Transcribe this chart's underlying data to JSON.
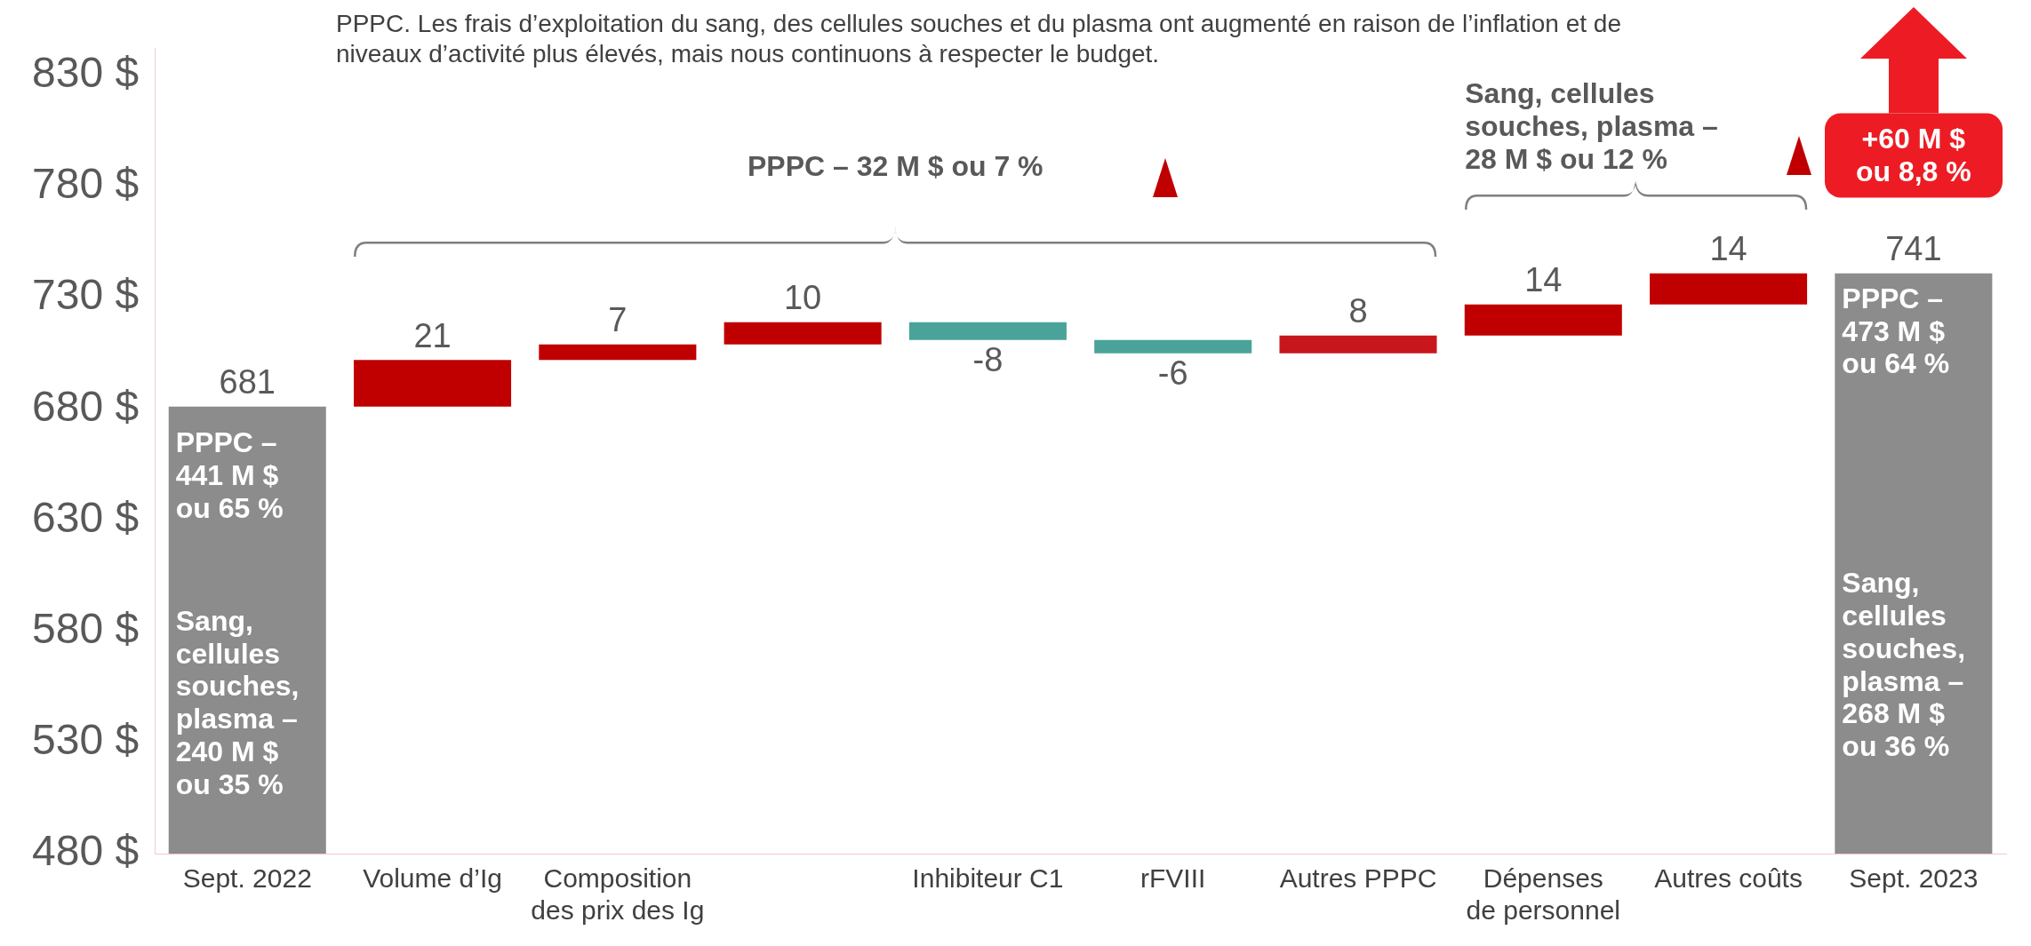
{
  "chart_data": {
    "type": "bar",
    "subtitle": "PPPC. Les frais d’exploitation du sang, des cellules souches et du plasma ont augmenté en raison de l’inflation et de niveaux d’activité plus élevés, mais nous continuons à respecter le budget.",
    "categories": [
      "Sept. 2022",
      "Volume d’Ig",
      "Composition des prix des Ig",
      null,
      "Inhibiteur C1",
      "rFVIII",
      "Autres PPPC",
      "Dépenses de personnel",
      "Autres coûts",
      "Sept. 2023"
    ],
    "values": [
      681,
      21,
      7,
      10,
      -8,
      -6,
      8,
      14,
      14,
      741
    ],
    "base": [
      null,
      681,
      702,
      709,
      719,
      711,
      705,
      713,
      727,
      null
    ],
    "colors": [
      "#8c8c8c",
      "#c00000",
      "#c00000",
      "#c00000",
      "#4aa39a",
      "#4aa39a",
      "#c8161d",
      "#c00000",
      "#c00000",
      "#8c8c8c"
    ],
    "data_labels": true,
    "ylim": [
      480,
      842
    ],
    "yticks": [
      {
        "value": 480,
        "label": "480 $"
      },
      {
        "value": 530,
        "label": "530 $"
      },
      {
        "value": 580,
        "label": "580 $"
      },
      {
        "value": 630,
        "label": "630 $"
      },
      {
        "value": 680,
        "label": "680 $"
      },
      {
        "value": 730,
        "label": "730 $"
      },
      {
        "value": 780,
        "label": "780 $"
      },
      {
        "value": 830,
        "label": "830 $"
      }
    ],
    "grid": false,
    "legend": false,
    "annotations": [
      "PPPC – 441 M $ ou 65 %",
      "Sang, cellules souches, plasma – 240 M $ ou 35 %",
      "PPPC – 473 M $ ou 64 %",
      "Sang, cellules souches, plasma – 268 M $ ou 36 %",
      "PPPC – 32 M $ ou 7 %",
      "Sang, cellules souches, plasma – 28 M $ ou 12 %",
      "+60 M $ ou 8,8 %"
    ]
  }
}
